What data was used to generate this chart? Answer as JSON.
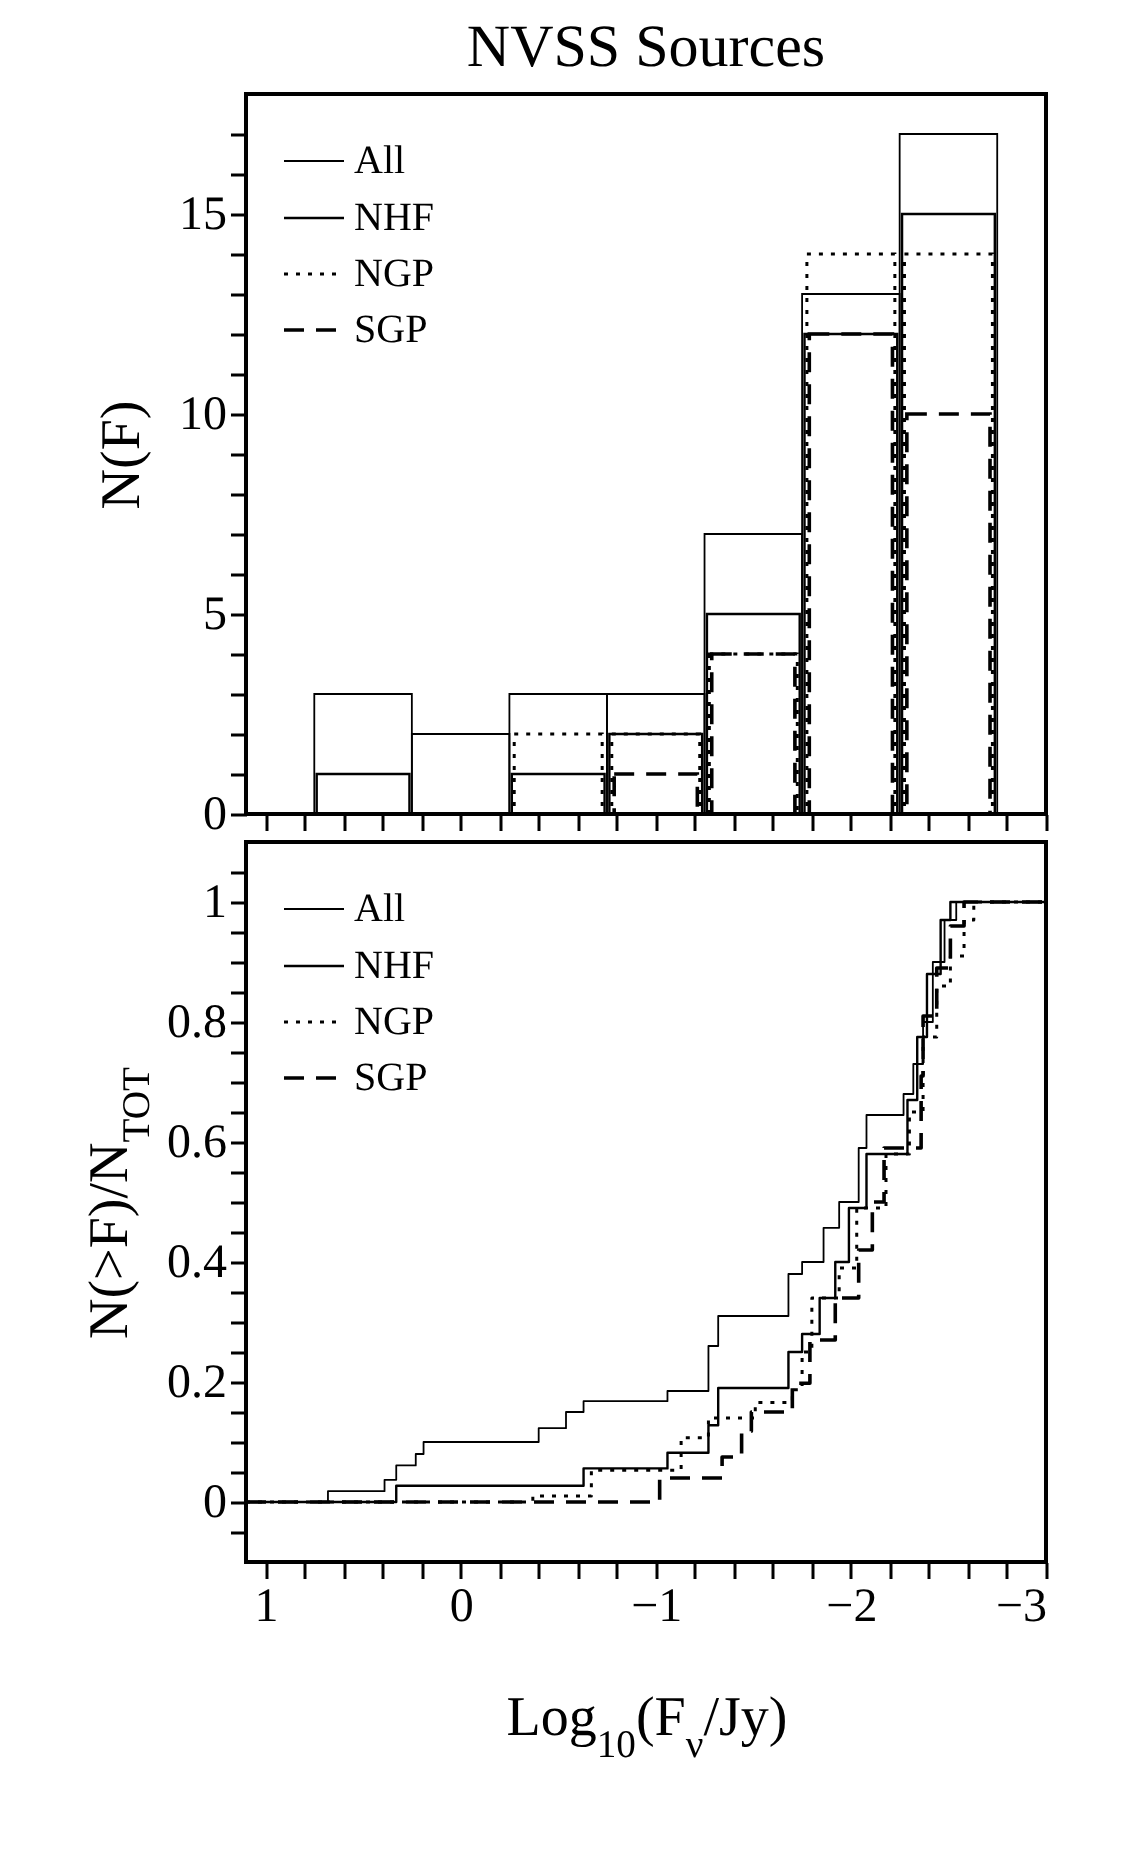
{
  "chart_data": [
    {
      "type": "histogram",
      "title": "NVSS Sources",
      "ylabel": "N(F)",
      "bins": [
        0.75,
        0.25,
        -0.25,
        -0.75,
        -1.25,
        -1.75,
        -2.25,
        -2.75
      ],
      "series": [
        {
          "name": "All",
          "color": "#000000",
          "line_style": "solid",
          "values": [
            3,
            2,
            3,
            3,
            7,
            13,
            17
          ]
        },
        {
          "name": "NHF",
          "color": "#000000",
          "line_style": "solid",
          "values": [
            1,
            0,
            1,
            2,
            5,
            12,
            15
          ]
        },
        {
          "name": "NGP",
          "color": "#000000",
          "line_style": "dotted",
          "values": [
            0,
            0,
            2,
            2,
            4,
            14,
            14
          ]
        },
        {
          "name": "SGP",
          "color": "#000000",
          "line_style": "dashed",
          "values": [
            0,
            0,
            0,
            1,
            4,
            12,
            10
          ]
        }
      ],
      "xlim": [
        1.1,
        -3
      ],
      "xticks": [
        1,
        {
          "value": 0.8,
          "label": null
        },
        {
          "value": 0.6,
          "label": null
        },
        {
          "value": 0.4,
          "label": null
        },
        {
          "value": 0.2,
          "label": null
        },
        0,
        {
          "value": -0.2,
          "label": null
        },
        {
          "value": -0.4,
          "label": null
        },
        {
          "value": -0.6,
          "label": null
        },
        {
          "value": -0.8,
          "label": null
        },
        -1,
        {
          "value": -1.2,
          "label": null
        },
        {
          "value": -1.4,
          "label": null
        },
        {
          "value": -1.6,
          "label": null
        },
        {
          "value": -1.8,
          "label": null
        },
        -2,
        {
          "value": -2.2,
          "label": null
        },
        {
          "value": -2.4,
          "label": null
        },
        {
          "value": -2.6,
          "label": null
        },
        {
          "value": -2.8,
          "label": null
        },
        -3
      ],
      "ylim": [
        0,
        18
      ],
      "yticks": [
        0,
        {
          "value": 1,
          "label": null
        },
        {
          "value": 2,
          "label": null
        },
        {
          "value": 3,
          "label": null
        },
        {
          "value": 4,
          "label": null
        },
        5,
        {
          "value": 6,
          "label": null
        },
        {
          "value": 7,
          "label": null
        },
        {
          "value": 8,
          "label": null
        },
        {
          "value": 9,
          "label": null
        },
        10,
        {
          "value": 11,
          "label": null
        },
        {
          "value": 12,
          "label": null
        },
        {
          "value": 13,
          "label": null
        },
        {
          "value": 14,
          "label": null
        },
        15,
        {
          "value": 16,
          "label": null
        },
        {
          "value": 17,
          "label": null
        }
      ],
      "tick_labels": "y",
      "legend": "top left"
    },
    {
      "type": "step",
      "xlabel": "Log$_{10}$(F$_{ν}$/Jy)",
      "ylabel": "N(>F)/N$_{TOT}$",
      "series": [
        {
          "name": "All",
          "color": "#000000",
          "line_style": "solid",
          "x": [
            1.1,
            0.68,
            0.39,
            0.33,
            0.23,
            0.19,
            -0.4,
            -0.54,
            -0.63,
            -1.06,
            -1.27,
            -1.32,
            -1.68,
            -1.75,
            -1.86,
            -1.94,
            -2.04,
            -2.08,
            -2.27,
            -2.32,
            -2.37,
            -2.42,
            -2.48,
            -2.54,
            -3
          ],
          "values": [
            0,
            0.018,
            0.037,
            0.061,
            0.08,
            0.1,
            0.123,
            0.15,
            0.168,
            0.185,
            0.26,
            0.31,
            0.38,
            0.4,
            0.457,
            0.5,
            0.59,
            0.645,
            0.68,
            0.73,
            0.8,
            0.9,
            0.97,
            1,
            1
          ]
        },
        {
          "name": "NHF",
          "color": "#000000",
          "line_style": "solid",
          "x": [
            1.1,
            0.33,
            -0.63,
            -1.06,
            -1.27,
            -1.32,
            -1.68,
            -1.75,
            -1.84,
            -1.92,
            -1.99,
            -2.08,
            -2.29,
            -2.34,
            -2.39,
            -2.46,
            -2.51,
            -3
          ],
          "values": [
            0,
            0.027,
            0.056,
            0.082,
            0.128,
            0.19,
            0.25,
            0.28,
            0.34,
            0.4,
            0.49,
            0.58,
            0.67,
            0.775,
            0.88,
            0.97,
            1,
            1
          ]
        },
        {
          "name": "NGP",
          "color": "#000000",
          "line_style": "dotted",
          "x": [
            1.1,
            -0.37,
            -0.67,
            -1.13,
            -1.27,
            -1.51,
            -1.7,
            -1.75,
            -1.8,
            -1.94,
            -2.03,
            -2.18,
            -2.3,
            -2.37,
            -2.44,
            -2.51,
            -2.58,
            -2.63,
            -3
          ],
          "values": [
            0,
            0.01,
            0.053,
            0.107,
            0.14,
            0.166,
            0.187,
            0.25,
            0.34,
            0.39,
            0.49,
            0.58,
            0.65,
            0.775,
            0.86,
            0.91,
            0.97,
            1,
            1
          ]
        },
        {
          "name": "SGP",
          "color": "#000000",
          "line_style": "dashed",
          "x": [
            1.1,
            -1.02,
            -1.34,
            -1.44,
            -1.49,
            -1.7,
            -1.79,
            -1.92,
            -2.04,
            -2.11,
            -2.17,
            -2.36,
            -2.37,
            -2.44,
            -2.51,
            -2.58,
            -3
          ],
          "values": [
            0,
            0.04,
            0.075,
            0.118,
            0.15,
            0.198,
            0.27,
            0.34,
            0.42,
            0.5,
            0.59,
            0.71,
            0.81,
            0.89,
            0.96,
            1,
            1
          ]
        }
      ],
      "xlim": [
        1.1,
        -3
      ],
      "xticks": [
        1,
        {
          "value": 0.8,
          "label": null
        },
        {
          "value": 0.6,
          "label": null
        },
        {
          "value": 0.4,
          "label": null
        },
        {
          "value": 0.2,
          "label": null
        },
        0,
        {
          "value": -0.2,
          "label": null
        },
        {
          "value": -0.4,
          "label": null
        },
        {
          "value": -0.6,
          "label": null
        },
        {
          "value": -0.8,
          "label": null
        },
        -1,
        {
          "value": -1.2,
          "label": null
        },
        {
          "value": -1.4,
          "label": null
        },
        {
          "value": -1.6,
          "label": null
        },
        {
          "value": -1.8,
          "label": null
        },
        -2,
        {
          "value": -2.2,
          "label": null
        },
        {
          "value": -2.4,
          "label": null
        },
        {
          "value": -2.6,
          "label": null
        },
        {
          "value": -2.8,
          "label": null
        },
        -3
      ],
      "ylim": [
        -0.1,
        1.1
      ],
      "yticks": [
        {
          "value": -0.05,
          "label": null
        },
        0,
        {
          "value": 0.05,
          "label": null
        },
        {
          "value": 0.1,
          "label": null
        },
        {
          "value": 0.15,
          "label": null
        },
        0.2,
        {
          "value": 0.25,
          "label": null
        },
        {
          "value": 0.3,
          "label": null
        },
        {
          "value": 0.35,
          "label": null
        },
        0.4,
        {
          "value": 0.45,
          "label": null
        },
        {
          "value": 0.5,
          "label": null
        },
        {
          "value": 0.55,
          "label": null
        },
        0.6,
        {
          "value": 0.65,
          "label": null
        },
        {
          "value": 0.7,
          "label": null
        },
        {
          "value": 0.75,
          "label": null
        },
        0.8,
        {
          "value": 0.85,
          "label": null
        },
        {
          "value": 0.9,
          "label": null
        },
        {
          "value": 0.95,
          "label": null
        },
        1,
        {
          "value": 1.05,
          "label": null
        }
      ],
      "legend": "top left"
    }
  ]
}
